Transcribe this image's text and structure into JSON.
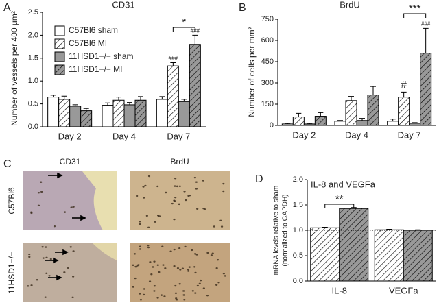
{
  "chart_data": [
    {
      "panel": "A",
      "type": "bar",
      "title": "CD31",
      "ylabel": "Number of vessels per 400 μm²",
      "categories": [
        "Day 2",
        "Day 4",
        "Day 7"
      ],
      "series": [
        {
          "name": "C57Bl6 sham",
          "color": "#ffffff",
          "hatch": false,
          "values": [
            0.65,
            0.47,
            0.6
          ],
          "errors": [
            0.04,
            0.05,
            0.06
          ]
        },
        {
          "name": "C57Bl6 MI",
          "color": "#ffffff",
          "hatch": true,
          "values": [
            0.6,
            0.58,
            1.33
          ],
          "errors": [
            0.07,
            0.07,
            0.07
          ]
        },
        {
          "name": "11HSD1−/− sham",
          "color": "#999999",
          "hatch": false,
          "values": [
            0.45,
            0.48,
            0.55
          ],
          "errors": [
            0.03,
            0.05,
            0.05
          ]
        },
        {
          "name": "11HSD1−/− MI",
          "color": "#999999",
          "hatch": true,
          "values": [
            0.35,
            0.58,
            1.8
          ],
          "errors": [
            0.05,
            0.08,
            0.2
          ]
        }
      ],
      "ylim": [
        0,
        2.5
      ],
      "yticks": [
        {
          "value": 0,
          "label": "0.0"
        },
        0.5,
        {
          "value": 1,
          "label": "1.0"
        },
        1.5,
        {
          "value": 2,
          "label": "2.0"
        },
        2.5
      ],
      "legend": "upper left",
      "annotations": [
        "###",
        "###",
        "*"
      ]
    },
    {
      "panel": "B",
      "type": "bar",
      "title": "BrdU",
      "ylabel": "Number of cells per mm²",
      "categories": [
        "Day 2",
        "Day 4",
        "Day 7"
      ],
      "series": [
        {
          "color": "#ffffff",
          "hatch": false,
          "values": [
            10,
            30,
            30
          ],
          "errors": [
            5,
            5,
            15
          ]
        },
        {
          "color": "#ffffff",
          "hatch": true,
          "values": [
            60,
            175,
            200
          ],
          "errors": [
            25,
            30,
            35
          ]
        },
        {
          "color": "#999999",
          "hatch": false,
          "values": [
            10,
            35,
            15
          ],
          "errors": [
            5,
            15,
            5
          ]
        },
        {
          "color": "#999999",
          "hatch": true,
          "values": [
            65,
            215,
            510
          ],
          "errors": [
            25,
            60,
            175
          ]
        }
      ],
      "ylim": [
        0,
        750
      ],
      "yticks": [
        0,
        150,
        300,
        450,
        600,
        750
      ],
      "annotations": [
        "#",
        "###",
        "***"
      ]
    },
    {
      "panel": "D",
      "type": "bar",
      "title": "IL-8 and VEGFa",
      "ylabel": [
        "mRNA levels relative to sham",
        "(normalized to GAPDH)"
      ],
      "categories": [
        "IL-8",
        "VEGFa"
      ],
      "series": [
        {
          "color": "#ffffff",
          "hatch": true,
          "values": [
            1.05,
            1.01
          ],
          "errors": [
            0.01,
            0.01
          ]
        },
        {
          "color": "#999999",
          "hatch": true,
          "values": [
            1.43,
            1.0
          ],
          "errors": [
            0.02,
            0.01
          ]
        }
      ],
      "ylim": [
        0,
        2
      ],
      "yticks": [
        {
          "value": 0,
          "label": "0.0"
        },
        0.5,
        {
          "value": 1,
          "label": "1.0"
        },
        1.5,
        {
          "value": 2,
          "label": "2.0"
        }
      ],
      "reference_line": 1,
      "annotations": [
        "**"
      ]
    }
  ],
  "image_panel": {
    "panel": "C",
    "columns": [
      "CD31",
      "BrdU"
    ],
    "rows": [
      "C57Bl6",
      "11HSD1−/−"
    ]
  }
}
